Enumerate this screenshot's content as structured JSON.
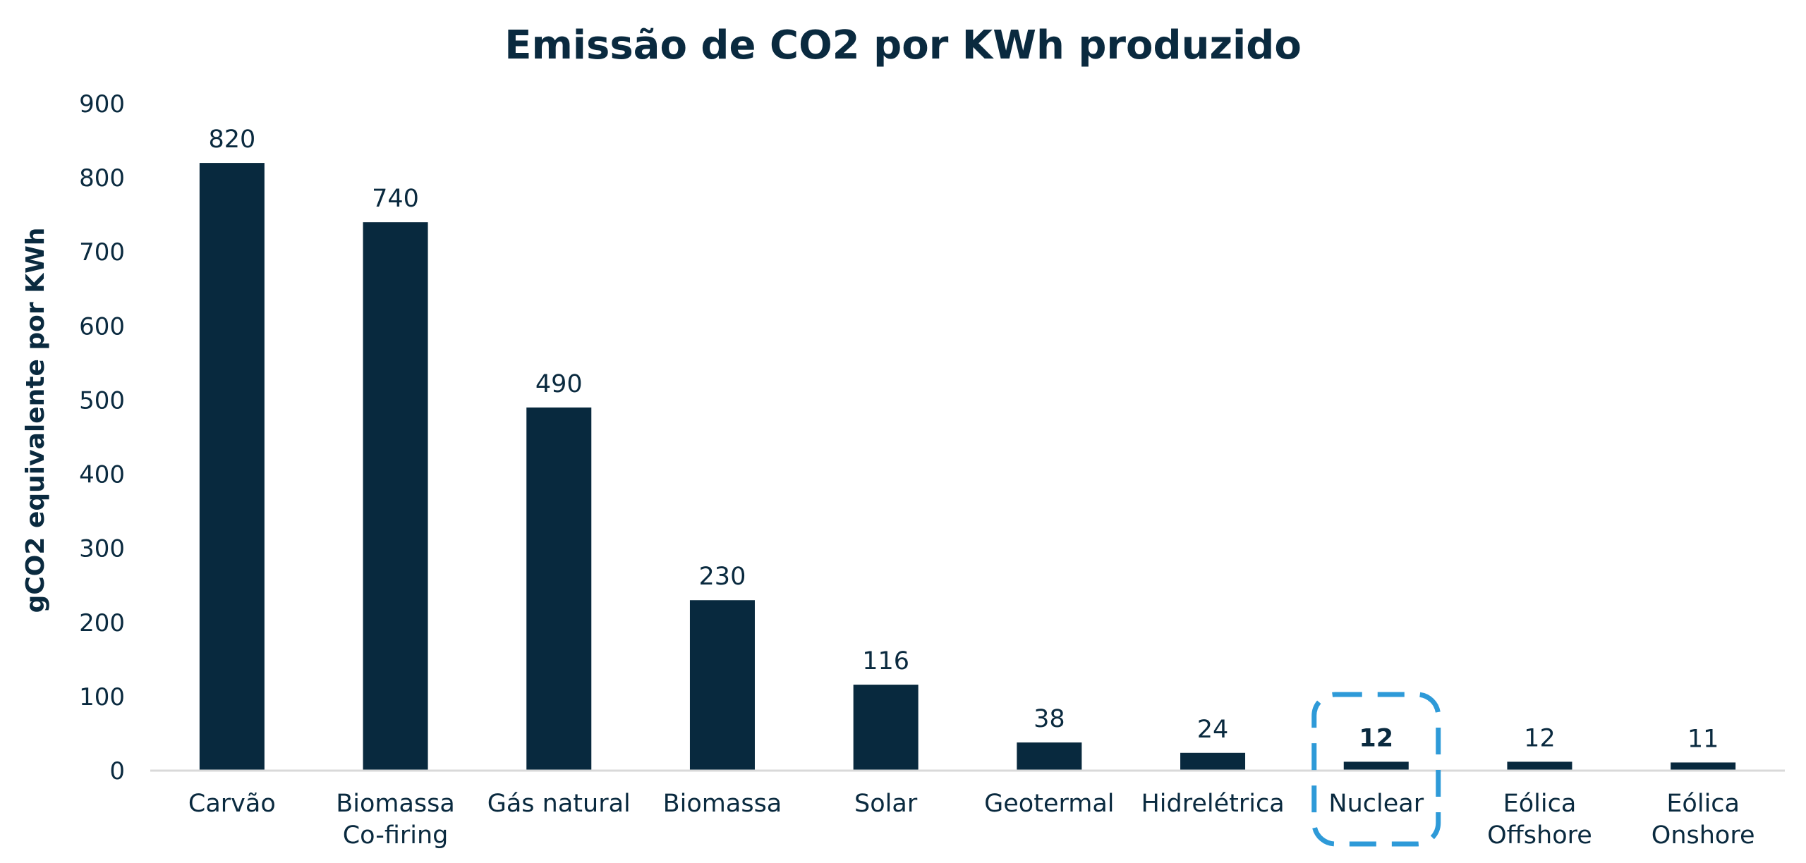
{
  "chart_data": {
    "type": "bar",
    "title": "Emissão de CO2 por KWh produzido",
    "xlabel": "",
    "ylabel": "gCO2 equivalente por KWh",
    "ylim": [
      0,
      900
    ],
    "yticks": [
      "0",
      "100",
      "200",
      "300",
      "400",
      "500",
      "600",
      "700",
      "800",
      "900"
    ],
    "grid": false,
    "categories": [
      [
        "Carvão"
      ],
      [
        "Biomassa",
        "Co-firing"
      ],
      [
        "Gás natural"
      ],
      [
        "Biomassa"
      ],
      [
        "Solar"
      ],
      [
        "Geotermal"
      ],
      [
        "Hidrelétrica"
      ],
      [
        "Nuclear"
      ],
      [
        "Eólica",
        "Offshore"
      ],
      [
        "Eólica",
        "Onshore"
      ]
    ],
    "values": [
      820,
      740,
      490,
      230,
      116,
      38,
      24,
      12,
      12,
      11
    ],
    "highlighted_category": "Nuclear",
    "colors": {
      "bar": "#08293e",
      "text": "#0a2a3f",
      "axis": "#d9d9d9",
      "highlight": "#2e9ad8"
    }
  }
}
